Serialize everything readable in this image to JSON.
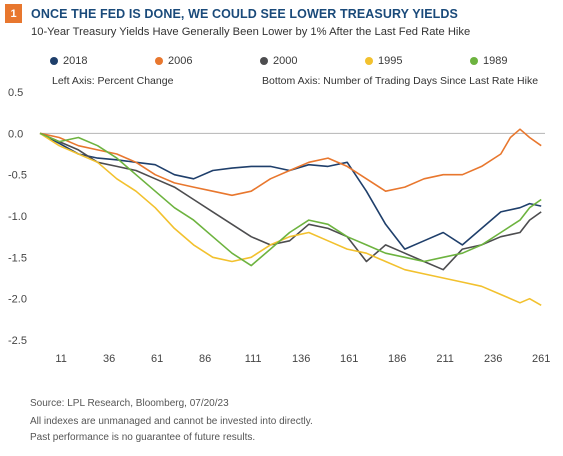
{
  "badge": "1",
  "title": "ONCE THE FED IS DONE, WE COULD SEE LOWER TREASURY YIELDS",
  "subtitle": "10-Year Treasury Yields Have Generally Been Lower by 1% After the Last Fed Rate Hike",
  "notes": {
    "left_axis": "Left Axis: Percent Change",
    "bottom_axis": "Bottom Axis: Number of Trading Days Since Last Rate Hike"
  },
  "footer": {
    "source": "Source: LPL Research, Bloomberg,  07/20/23",
    "line2": "All indexes are unmanaged and cannot be invested into directly.",
    "line3": "Past performance is no guarantee of future results."
  },
  "chart_data": {
    "type": "line",
    "title": "ONCE THE FED IS DONE, WE COULD SEE LOWER TREASURY YIELDS",
    "subtitle": "10-Year Treasury Yields Have Generally Been Lower by 1% After the Last Fed Rate Hike",
    "xlabel": "Bottom Axis: Number of Trading Days Since Last Rate Hike",
    "ylabel": "Left Axis: Percent Change",
    "xlim": [
      0,
      263
    ],
    "ylim": [
      -2.5,
      0.5
    ],
    "xticks": [
      11,
      36,
      61,
      86,
      111,
      136,
      161,
      186,
      211,
      236,
      261
    ],
    "yticks": [
      0.5,
      0.0,
      -0.5,
      -1.0,
      -1.5,
      -2.0,
      -2.5
    ],
    "ytick_labels": [
      "0.5",
      "0.0",
      "-0.5",
      "-1.0",
      "-1.5",
      "-2.0",
      "-2.5"
    ],
    "grid": false,
    "legend_position": "top",
    "series": [
      {
        "name": "2018",
        "color": "#1f3f6b",
        "x": [
          0,
          10,
          20,
          30,
          40,
          50,
          60,
          70,
          80,
          90,
          100,
          110,
          120,
          130,
          140,
          150,
          160,
          170,
          180,
          190,
          200,
          210,
          220,
          230,
          240,
          250,
          255,
          261
        ],
        "values": [
          0.0,
          -0.12,
          -0.25,
          -0.3,
          -0.32,
          -0.35,
          -0.38,
          -0.5,
          -0.55,
          -0.45,
          -0.42,
          -0.4,
          -0.4,
          -0.45,
          -0.38,
          -0.4,
          -0.35,
          -0.7,
          -1.1,
          -1.4,
          -1.3,
          -1.2,
          -1.35,
          -1.15,
          -0.95,
          -0.9,
          -0.85,
          -0.88
        ]
      },
      {
        "name": "2006",
        "color": "#e8772e",
        "x": [
          0,
          10,
          20,
          30,
          40,
          50,
          60,
          70,
          80,
          90,
          100,
          110,
          120,
          130,
          140,
          150,
          160,
          170,
          180,
          190,
          200,
          210,
          220,
          230,
          240,
          245,
          250,
          255,
          261
        ],
        "values": [
          0.0,
          -0.05,
          -0.15,
          -0.2,
          -0.25,
          -0.35,
          -0.5,
          -0.6,
          -0.65,
          -0.7,
          -0.75,
          -0.7,
          -0.55,
          -0.45,
          -0.35,
          -0.3,
          -0.4,
          -0.55,
          -0.7,
          -0.65,
          -0.55,
          -0.5,
          -0.5,
          -0.4,
          -0.25,
          -0.05,
          0.05,
          -0.05,
          -0.15
        ]
      },
      {
        "name": "2000",
        "color": "#4d4d4f",
        "x": [
          0,
          10,
          20,
          30,
          40,
          50,
          60,
          70,
          80,
          90,
          100,
          110,
          120,
          130,
          140,
          150,
          160,
          170,
          180,
          190,
          200,
          210,
          220,
          230,
          240,
          250,
          255,
          261
        ],
        "values": [
          0.0,
          -0.1,
          -0.2,
          -0.35,
          -0.4,
          -0.45,
          -0.55,
          -0.65,
          -0.8,
          -0.95,
          -1.1,
          -1.25,
          -1.35,
          -1.3,
          -1.1,
          -1.15,
          -1.25,
          -1.55,
          -1.35,
          -1.45,
          -1.55,
          -1.65,
          -1.4,
          -1.35,
          -1.25,
          -1.2,
          -1.05,
          -0.95
        ]
      },
      {
        "name": "1995",
        "color": "#f2c12e",
        "x": [
          0,
          10,
          20,
          30,
          40,
          50,
          60,
          70,
          80,
          90,
          100,
          110,
          120,
          130,
          140,
          150,
          160,
          170,
          180,
          190,
          200,
          210,
          220,
          230,
          240,
          250,
          255,
          261
        ],
        "values": [
          0.0,
          -0.15,
          -0.25,
          -0.35,
          -0.55,
          -0.7,
          -0.9,
          -1.15,
          -1.35,
          -1.5,
          -1.55,
          -1.5,
          -1.35,
          -1.25,
          -1.2,
          -1.3,
          -1.4,
          -1.45,
          -1.55,
          -1.65,
          -1.7,
          -1.75,
          -1.8,
          -1.85,
          -1.95,
          -2.05,
          -2.0,
          -2.08
        ]
      },
      {
        "name": "1989",
        "color": "#6db33f",
        "x": [
          0,
          10,
          20,
          30,
          40,
          50,
          60,
          70,
          80,
          90,
          100,
          110,
          120,
          130,
          140,
          150,
          160,
          170,
          180,
          190,
          200,
          210,
          220,
          230,
          240,
          250,
          255,
          261
        ],
        "values": [
          0.0,
          -0.1,
          -0.05,
          -0.15,
          -0.3,
          -0.5,
          -0.7,
          -0.9,
          -1.05,
          -1.25,
          -1.45,
          -1.6,
          -1.4,
          -1.2,
          -1.05,
          -1.1,
          -1.25,
          -1.35,
          -1.45,
          -1.5,
          -1.55,
          -1.5,
          -1.45,
          -1.35,
          -1.2,
          -1.05,
          -0.9,
          -0.8
        ]
      }
    ]
  }
}
